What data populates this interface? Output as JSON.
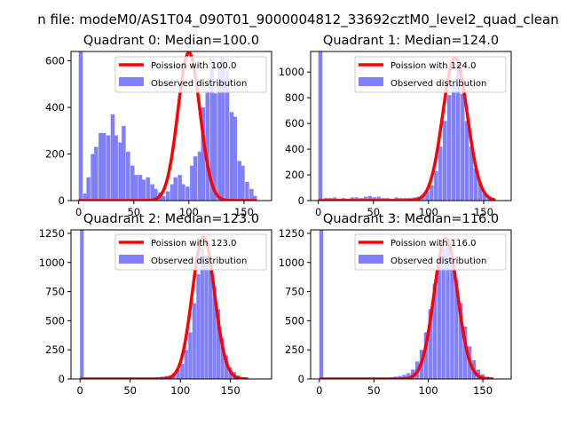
{
  "figure": {
    "suptitle": "n file: modeM0/AS1T04_090T01_9000004812_33692cztM0_level2_quad_clean",
    "colors": {
      "histogram": "#8080ff",
      "poisson": "#ff0000",
      "axes": "#000000"
    }
  },
  "chart_data": [
    {
      "type": "bar",
      "title": "Quadrant 0: Median=100.0",
      "median": 100.0,
      "xlim": [
        -7,
        175
      ],
      "ylim": [
        0,
        640
      ],
      "xticks": [
        0,
        50,
        100,
        150
      ],
      "yticks": [
        0,
        200,
        400,
        600
      ],
      "bin_width": 3.6,
      "bins": [
        {
          "x": 0,
          "y": 640
        },
        {
          "x": 4,
          "y": 30
        },
        {
          "x": 7,
          "y": 100
        },
        {
          "x": 11,
          "y": 200
        },
        {
          "x": 14,
          "y": 230
        },
        {
          "x": 18,
          "y": 290
        },
        {
          "x": 21,
          "y": 290
        },
        {
          "x": 25,
          "y": 280
        },
        {
          "x": 29,
          "y": 370
        },
        {
          "x": 32,
          "y": 280
        },
        {
          "x": 36,
          "y": 250
        },
        {
          "x": 39,
          "y": 320
        },
        {
          "x": 43,
          "y": 210
        },
        {
          "x": 47,
          "y": 150
        },
        {
          "x": 50,
          "y": 110
        },
        {
          "x": 54,
          "y": 110
        },
        {
          "x": 57,
          "y": 90
        },
        {
          "x": 61,
          "y": 100
        },
        {
          "x": 65,
          "y": 70
        },
        {
          "x": 68,
          "y": 50
        },
        {
          "x": 72,
          "y": 35
        },
        {
          "x": 75,
          "y": 20
        },
        {
          "x": 79,
          "y": 40
        },
        {
          "x": 83,
          "y": 70
        },
        {
          "x": 86,
          "y": 100
        },
        {
          "x": 90,
          "y": 110
        },
        {
          "x": 93,
          "y": 70
        },
        {
          "x": 97,
          "y": 60
        },
        {
          "x": 101,
          "y": 150
        },
        {
          "x": 104,
          "y": 190
        },
        {
          "x": 108,
          "y": 210
        },
        {
          "x": 111,
          "y": 400
        },
        {
          "x": 115,
          "y": 470
        },
        {
          "x": 119,
          "y": 610
        },
        {
          "x": 122,
          "y": 460
        },
        {
          "x": 126,
          "y": 570
        },
        {
          "x": 129,
          "y": 610
        },
        {
          "x": 133,
          "y": 560
        },
        {
          "x": 137,
          "y": 380
        },
        {
          "x": 140,
          "y": 360
        },
        {
          "x": 144,
          "y": 170
        },
        {
          "x": 147,
          "y": 150
        },
        {
          "x": 151,
          "y": 80
        },
        {
          "x": 155,
          "y": 50
        },
        {
          "x": 158,
          "y": 20
        }
      ],
      "poisson": {
        "mean": 100.0,
        "peak": 635
      },
      "legend": {
        "poisson_label": "Poission with 100.0",
        "observed_label": "Observed distribution",
        "position": "top-right"
      }
    },
    {
      "type": "bar",
      "title": "Quadrant 1: Median=124.0",
      "median": 124.0,
      "xlim": [
        -7,
        175
      ],
      "ylim": [
        0,
        1160
      ],
      "xticks": [
        0,
        50,
        100,
        150
      ],
      "yticks": [
        0,
        200,
        400,
        600,
        800,
        1000
      ],
      "bin_width": 3.6,
      "bins": [
        {
          "x": 0,
          "y": 1160
        },
        {
          "x": 5,
          "y": 20
        },
        {
          "x": 9,
          "y": 20
        },
        {
          "x": 13,
          "y": 25
        },
        {
          "x": 17,
          "y": 15
        },
        {
          "x": 21,
          "y": 20
        },
        {
          "x": 25,
          "y": 15
        },
        {
          "x": 29,
          "y": 25
        },
        {
          "x": 33,
          "y": 25
        },
        {
          "x": 37,
          "y": 20
        },
        {
          "x": 41,
          "y": 30
        },
        {
          "x": 45,
          "y": 35
        },
        {
          "x": 49,
          "y": 25
        },
        {
          "x": 53,
          "y": 30
        },
        {
          "x": 57,
          "y": 20
        },
        {
          "x": 61,
          "y": 20
        },
        {
          "x": 65,
          "y": 15
        },
        {
          "x": 69,
          "y": 25
        },
        {
          "x": 73,
          "y": 20
        },
        {
          "x": 77,
          "y": 20
        },
        {
          "x": 81,
          "y": 20
        },
        {
          "x": 85,
          "y": 25
        },
        {
          "x": 89,
          "y": 30
        },
        {
          "x": 93,
          "y": 40
        },
        {
          "x": 97,
          "y": 70
        },
        {
          "x": 101,
          "y": 120
        },
        {
          "x": 105,
          "y": 230
        },
        {
          "x": 109,
          "y": 420
        },
        {
          "x": 113,
          "y": 620
        },
        {
          "x": 117,
          "y": 820
        },
        {
          "x": 121,
          "y": 900
        },
        {
          "x": 125,
          "y": 1060
        },
        {
          "x": 129,
          "y": 830
        },
        {
          "x": 133,
          "y": 620
        },
        {
          "x": 137,
          "y": 420
        },
        {
          "x": 141,
          "y": 250
        },
        {
          "x": 145,
          "y": 140
        },
        {
          "x": 149,
          "y": 60
        },
        {
          "x": 153,
          "y": 35
        },
        {
          "x": 157,
          "y": 15
        }
      ],
      "poisson": {
        "mean": 124.0,
        "peak": 1110
      },
      "legend": {
        "poisson_label": "Poission with 124.0",
        "observed_label": "Observed distribution",
        "position": "top-right"
      }
    },
    {
      "type": "bar",
      "title": "Quadrant 2: Median=123.0",
      "median": 123.0,
      "xlim": [
        -9,
        191
      ],
      "ylim": [
        0,
        1280
      ],
      "xticks": [
        0,
        50,
        100,
        150
      ],
      "yticks": [
        0,
        250,
        500,
        750,
        1000,
        1250
      ],
      "bin_width": 3.7,
      "bins": [
        {
          "x": 0,
          "y": 1280
        },
        {
          "x": 68,
          "y": 5
        },
        {
          "x": 72,
          "y": 10
        },
        {
          "x": 76,
          "y": 15
        },
        {
          "x": 80,
          "y": 20
        },
        {
          "x": 84,
          "y": 25
        },
        {
          "x": 88,
          "y": 30
        },
        {
          "x": 92,
          "y": 50
        },
        {
          "x": 96,
          "y": 80
        },
        {
          "x": 100,
          "y": 130
        },
        {
          "x": 104,
          "y": 250
        },
        {
          "x": 108,
          "y": 400
        },
        {
          "x": 112,
          "y": 650
        },
        {
          "x": 116,
          "y": 900
        },
        {
          "x": 120,
          "y": 1120
        },
        {
          "x": 124,
          "y": 1060
        },
        {
          "x": 128,
          "y": 1000
        },
        {
          "x": 132,
          "y": 800
        },
        {
          "x": 136,
          "y": 600
        },
        {
          "x": 140,
          "y": 350
        },
        {
          "x": 144,
          "y": 200
        },
        {
          "x": 148,
          "y": 100
        },
        {
          "x": 152,
          "y": 60
        },
        {
          "x": 156,
          "y": 30
        },
        {
          "x": 160,
          "y": 15
        },
        {
          "x": 164,
          "y": 5
        }
      ],
      "poisson": {
        "mean": 123.0,
        "peak": 1220
      },
      "legend": {
        "poisson_label": "Poission with 123.0",
        "observed_label": "Observed distribution",
        "position": "top-right"
      }
    },
    {
      "type": "bar",
      "title": "Quadrant 3: Median=116.0",
      "median": 116.0,
      "xlim": [
        -8,
        176
      ],
      "ylim": [
        0,
        1280
      ],
      "xticks": [
        0,
        50,
        100,
        150
      ],
      "yticks": [
        0,
        250,
        500,
        750,
        1000,
        1250
      ],
      "bin_width": 3.6,
      "bins": [
        {
          "x": 0,
          "y": 1280
        },
        {
          "x": 40,
          "y": 5
        },
        {
          "x": 44,
          "y": 5
        },
        {
          "x": 48,
          "y": 10
        },
        {
          "x": 52,
          "y": 5
        },
        {
          "x": 56,
          "y": 10
        },
        {
          "x": 60,
          "y": 10
        },
        {
          "x": 64,
          "y": 15
        },
        {
          "x": 68,
          "y": 20
        },
        {
          "x": 72,
          "y": 25
        },
        {
          "x": 76,
          "y": 35
        },
        {
          "x": 80,
          "y": 50
        },
        {
          "x": 84,
          "y": 80
        },
        {
          "x": 88,
          "y": 150
        },
        {
          "x": 92,
          "y": 250
        },
        {
          "x": 96,
          "y": 400
        },
        {
          "x": 100,
          "y": 600
        },
        {
          "x": 104,
          "y": 820
        },
        {
          "x": 108,
          "y": 1000
        },
        {
          "x": 112,
          "y": 1120
        },
        {
          "x": 116,
          "y": 1150
        },
        {
          "x": 120,
          "y": 1050
        },
        {
          "x": 124,
          "y": 850
        },
        {
          "x": 128,
          "y": 650
        },
        {
          "x": 132,
          "y": 450
        },
        {
          "x": 136,
          "y": 280
        },
        {
          "x": 140,
          "y": 160
        },
        {
          "x": 144,
          "y": 80
        },
        {
          "x": 148,
          "y": 40
        },
        {
          "x": 152,
          "y": 20
        },
        {
          "x": 156,
          "y": 10
        }
      ],
      "poisson": {
        "mean": 116.0,
        "peak": 1210
      },
      "legend": {
        "poisson_label": "Poission with 116.0",
        "observed_label": "Observed distribution",
        "position": "top-right"
      }
    }
  ]
}
